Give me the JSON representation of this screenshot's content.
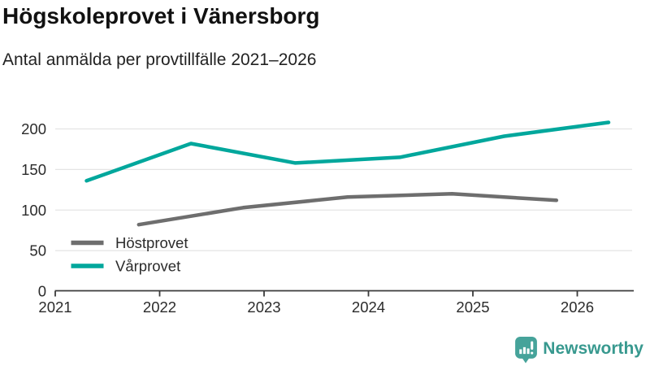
{
  "header": {
    "title": "Högskoleprovet i Vänersborg",
    "subtitle": "Antal anmälda per provtillfälle 2021–2026"
  },
  "chart_data": {
    "type": "line",
    "title": "Högskoleprovet i Vänersborg",
    "subtitle": "Antal anmälda per provtillfälle 2021–2026",
    "xlabel": "",
    "ylabel": "",
    "xlim": [
      2021,
      2026.53
    ],
    "ylim": [
      0,
      215
    ],
    "xticks": [
      2021,
      2022,
      2023,
      2024,
      2025,
      2026
    ],
    "yticks": [
      0,
      50,
      100,
      150,
      200
    ],
    "grid": "horizontal",
    "legend_position": "inside-bottom-left",
    "series": [
      {
        "name": "Höstprovet",
        "color": "#6e6e6e",
        "x": [
          2021.8,
          2022.8,
          2023.8,
          2024.8,
          2025.8
        ],
        "values": [
          82,
          103,
          116,
          120,
          112
        ]
      },
      {
        "name": "Vårprovet",
        "color": "#00a79c",
        "x": [
          2021.3,
          2022.3,
          2023.3,
          2024.3,
          2025.3,
          2026.3
        ],
        "values": [
          136,
          182,
          158,
          165,
          191,
          208
        ]
      }
    ]
  },
  "footer": {
    "brand": "Newsworthy",
    "brand_color": "#38998f",
    "icon": "newsworthy-bar-chart-bubble-icon",
    "icon_color": "#46a39a"
  },
  "colors": {
    "accent_teal": "#00a79c",
    "line_gray": "#6e6e6e",
    "gridline": "#e4e4e4",
    "axis": "#3a3a3a",
    "text": "#2b2b2b"
  }
}
